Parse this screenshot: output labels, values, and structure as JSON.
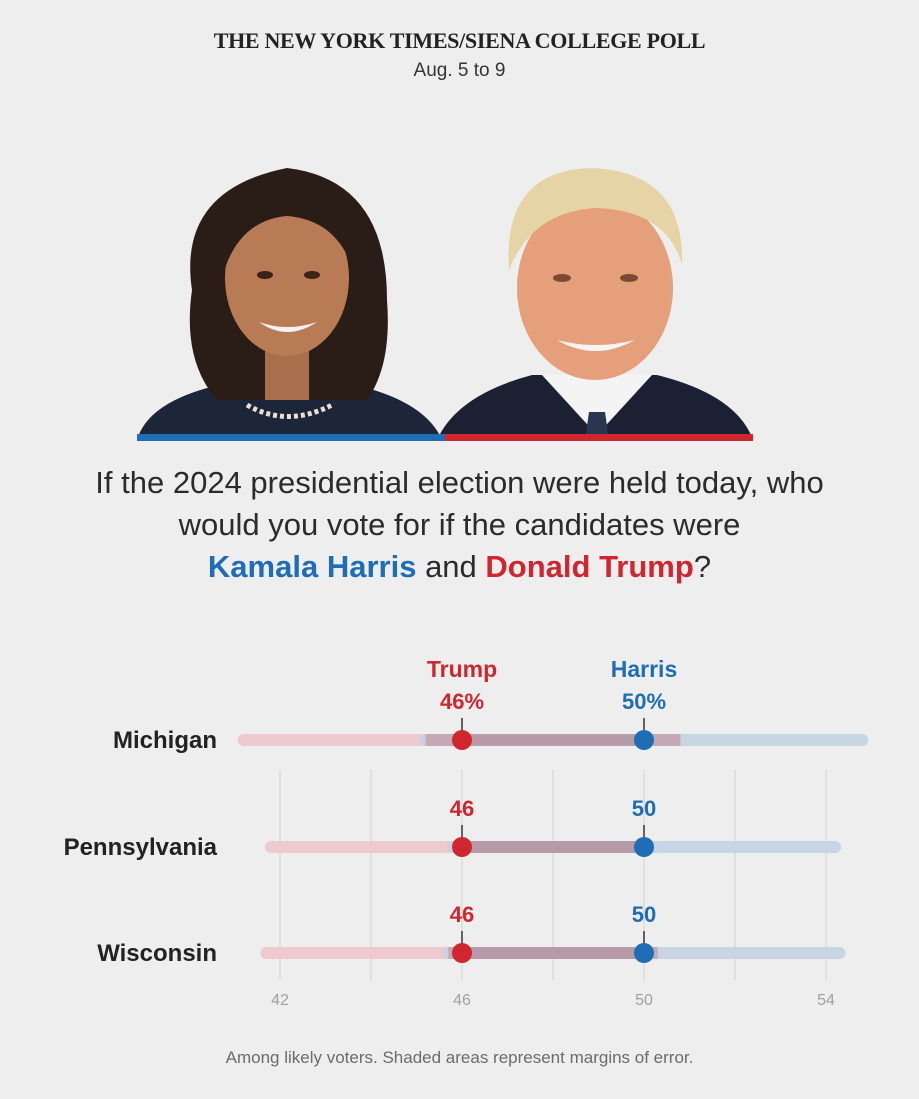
{
  "header": {
    "title": "THE NEW YORK TIMES/SIENA COLLEGE POLL",
    "dates": "Aug. 5 to 9"
  },
  "question": {
    "line1": "If the 2024 presidential election were held today, who",
    "line2": "would you vote for if the candidates were",
    "harris_name": "Kamala Harris",
    "conjunction": "and",
    "trump_name": "Donald Trump",
    "end_mark": "?"
  },
  "colors": {
    "harris": "#1f6db4",
    "trump": "#d0262f",
    "harris_band": "#c6d4e4",
    "trump_band": "#eec9cd",
    "overlap_band": "#c5a9b6",
    "background": "#eeeeee"
  },
  "chart_data": {
    "type": "dot-range",
    "xlim": [
      40.5,
      54.5
    ],
    "xticks": [
      42,
      46,
      50,
      54
    ],
    "xtick_labels": [
      "42",
      "46",
      "50",
      "54"
    ],
    "gridlines": [
      42,
      44,
      46,
      48,
      50,
      52,
      54
    ],
    "series_labels": {
      "trump": "Trump",
      "harris": "Harris"
    },
    "rows": [
      {
        "state": "Michigan",
        "trump": 46,
        "harris": 50,
        "trump_label": "46%",
        "harris_label": "50%",
        "trump_range": [
          41.2,
          50.8
        ],
        "harris_range": [
          45.2,
          54.8
        ]
      },
      {
        "state": "Pennsylvania",
        "trump": 46,
        "harris": 50,
        "trump_label": "46",
        "harris_label": "50",
        "trump_range": [
          41.8,
          50.2
        ],
        "harris_range": [
          45.8,
          54.2
        ]
      },
      {
        "state": "Wisconsin",
        "trump": 46,
        "harris": 50,
        "trump_label": "46",
        "harris_label": "50",
        "trump_range": [
          41.7,
          50.3
        ],
        "harris_range": [
          45.7,
          54.3
        ]
      }
    ]
  },
  "footnote": "Among likely voters. Shaded areas represent margins of error."
}
